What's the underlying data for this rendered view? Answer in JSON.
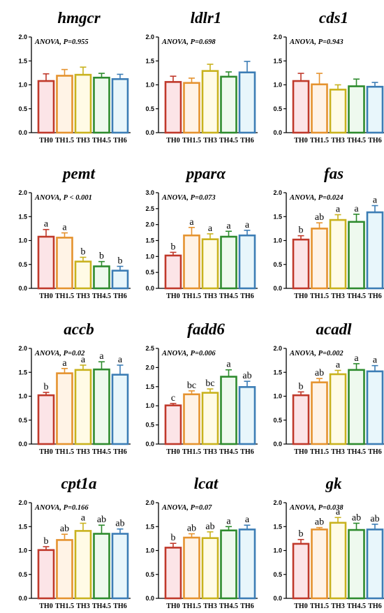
{
  "chart_data": [
    {
      "type": "bar",
      "title": "hmgcr",
      "annotation": "ANOVA, P=0.955",
      "categories": [
        "TH0",
        "TH1.5",
        "TH3",
        "TH4.5",
        "TH6"
      ],
      "values": [
        1.08,
        1.19,
        1.21,
        1.15,
        1.12
      ],
      "errors": [
        0.15,
        0.13,
        0.16,
        0.09,
        0.1
      ],
      "letters": [
        "",
        "",
        "",
        "",
        ""
      ],
      "ylim": [
        0,
        2.0
      ],
      "yticks": [
        "0.0",
        "0.5",
        "1.0",
        "1.5",
        "2.0"
      ]
    },
    {
      "type": "bar",
      "title": "ldlr1",
      "annotation": "ANOVA, P=0.698",
      "categories": [
        "TH0",
        "TH1.5",
        "TH3",
        "TH4.5",
        "TH6"
      ],
      "values": [
        1.06,
        1.04,
        1.29,
        1.17,
        1.26
      ],
      "errors": [
        0.12,
        0.1,
        0.14,
        0.1,
        0.23
      ],
      "letters": [
        "",
        "",
        "",
        "",
        ""
      ],
      "ylim": [
        0,
        2.0
      ],
      "yticks": [
        "0.0",
        "0.5",
        "1.0",
        "1.5",
        "2.0"
      ]
    },
    {
      "type": "bar",
      "title": "cds1",
      "annotation": "ANOVA, P=0.943",
      "categories": [
        "TH0",
        "TH1.5",
        "TH3",
        "TH4.5",
        "TH6"
      ],
      "values": [
        1.08,
        1.01,
        0.9,
        0.97,
        0.96
      ],
      "errors": [
        0.16,
        0.23,
        0.1,
        0.15,
        0.09
      ],
      "letters": [
        "",
        "",
        "",
        "",
        ""
      ],
      "ylim": [
        0,
        2.0
      ],
      "yticks": [
        "0.0",
        "0.5",
        "1.0",
        "1.5",
        "2.0"
      ]
    },
    {
      "type": "bar",
      "title": "pemt",
      "annotation": "ANOVA, P < 0.001",
      "categories": [
        "TH0",
        "TH1.5",
        "TH3",
        "TH4.5",
        "TH6"
      ],
      "values": [
        1.08,
        1.06,
        0.56,
        0.46,
        0.37
      ],
      "errors": [
        0.15,
        0.1,
        0.09,
        0.1,
        0.09
      ],
      "letters": [
        "a",
        "a",
        "b",
        "b",
        "b"
      ],
      "ylim": [
        0,
        2.0
      ],
      "yticks": [
        "0.0",
        "0.5",
        "1.0",
        "1.5",
        "2.0"
      ]
    },
    {
      "type": "bar",
      "title": "pparα",
      "annotation": "ANOVA, P=0.073",
      "categories": [
        "TH0",
        "TH1.5",
        "TH3",
        "TH4.5",
        "TH6"
      ],
      "values": [
        1.03,
        1.66,
        1.54,
        1.62,
        1.66
      ],
      "errors": [
        0.1,
        0.25,
        0.17,
        0.17,
        0.16
      ],
      "letters": [
        "b",
        "a",
        "a",
        "a",
        "a"
      ],
      "ylim": [
        0,
        3.0
      ],
      "yticks": [
        "0.0",
        "0.5",
        "1.0",
        "1.5",
        "2.0",
        "2.5",
        "3.0"
      ]
    },
    {
      "type": "bar",
      "title": "fas",
      "annotation": "ANOVA, P=0.024",
      "categories": [
        "TH0",
        "TH1.5",
        "TH3",
        "TH4.5",
        "TH6"
      ],
      "values": [
        1.02,
        1.25,
        1.43,
        1.39,
        1.59
      ],
      "errors": [
        0.08,
        0.12,
        0.11,
        0.16,
        0.14
      ],
      "letters": [
        "b",
        "ab",
        "a",
        "a",
        "a"
      ],
      "ylim": [
        0,
        2.0
      ],
      "yticks": [
        "0.0",
        "0.5",
        "1.0",
        "1.5",
        "2.0"
      ]
    },
    {
      "type": "bar",
      "title": "accb",
      "annotation": "ANOVA, P=0.02",
      "categories": [
        "TH0",
        "TH1.5",
        "TH3",
        "TH4.5",
        "TH6"
      ],
      "values": [
        1.02,
        1.48,
        1.55,
        1.56,
        1.45
      ],
      "errors": [
        0.06,
        0.1,
        0.1,
        0.16,
        0.2
      ],
      "letters": [
        "b",
        "a",
        "a",
        "a",
        "a"
      ],
      "ylim": [
        0,
        2.0
      ],
      "yticks": [
        "0.0",
        "0.5",
        "1.0",
        "1.5",
        "2.0"
      ]
    },
    {
      "type": "bar",
      "title": "fadd6",
      "annotation": "ANOVA, P=0.006",
      "categories": [
        "TH0",
        "TH1.5",
        "TH3",
        "TH4.5",
        "TH6"
      ],
      "values": [
        1.01,
        1.3,
        1.34,
        1.76,
        1.49
      ],
      "errors": [
        0.05,
        0.09,
        0.1,
        0.18,
        0.15
      ],
      "letters": [
        "c",
        "bc",
        "bc",
        "a",
        "ab"
      ],
      "ylim": [
        0,
        2.5
      ],
      "yticks": [
        "0.0",
        "0.5",
        "1.0",
        "1.5",
        "2.0",
        "2.5"
      ]
    },
    {
      "type": "bar",
      "title": "acadl",
      "annotation": "ANOVA, P=0.002",
      "categories": [
        "TH0",
        "TH1.5",
        "TH3",
        "TH4.5",
        "TH6"
      ],
      "values": [
        1.02,
        1.29,
        1.46,
        1.55,
        1.52
      ],
      "errors": [
        0.07,
        0.08,
        0.08,
        0.13,
        0.12
      ],
      "letters": [
        "b",
        "ab",
        "a",
        "a",
        "a"
      ],
      "ylim": [
        0,
        2.0
      ],
      "yticks": [
        "0.0",
        "0.5",
        "1.0",
        "1.5",
        "2.0"
      ]
    },
    {
      "type": "bar",
      "title": "cpt1a",
      "annotation": "ANOVA, P=0.166",
      "categories": [
        "TH0",
        "TH1.5",
        "TH3",
        "TH4.5",
        "TH6"
      ],
      "values": [
        1.01,
        1.22,
        1.41,
        1.35,
        1.35
      ],
      "errors": [
        0.07,
        0.12,
        0.16,
        0.18,
        0.1
      ],
      "letters": [
        "b",
        "ab",
        "a",
        "ab",
        "ab"
      ],
      "ylim": [
        0,
        2.0
      ],
      "yticks": [
        "0.0",
        "0.5",
        "1.0",
        "1.5",
        "2.0"
      ]
    },
    {
      "type": "bar",
      "title": "lcat",
      "annotation": "ANOVA, P=0.07",
      "categories": [
        "TH0",
        "TH1.5",
        "TH3",
        "TH4.5",
        "TH6"
      ],
      "values": [
        1.06,
        1.27,
        1.26,
        1.42,
        1.44
      ],
      "errors": [
        0.09,
        0.08,
        0.13,
        0.08,
        0.09
      ],
      "letters": [
        "b",
        "ab",
        "ab",
        "a",
        "a"
      ],
      "ylim": [
        0,
        2.0
      ],
      "yticks": [
        "0.0",
        "0.5",
        "1.0",
        "1.5",
        "2.0"
      ]
    },
    {
      "type": "bar",
      "title": "gk",
      "annotation": "ANOVA, P=0.038",
      "categories": [
        "TH0",
        "TH1.5",
        "TH3",
        "TH4.5",
        "TH6"
      ],
      "values": [
        1.14,
        1.44,
        1.58,
        1.43,
        1.44
      ],
      "errors": [
        0.09,
        0.04,
        0.11,
        0.14,
        0.11
      ],
      "letters": [
        "b",
        "ab",
        "a",
        "ab",
        "ab"
      ],
      "ylim": [
        0,
        2.0
      ],
      "yticks": [
        "0.0",
        "0.5",
        "1.0",
        "1.5",
        "2.0"
      ]
    }
  ],
  "colors": {
    "bar_edges": [
      "#C0392B",
      "#E5932F",
      "#C9B21E",
      "#2E8B2E",
      "#3C7DB5"
    ],
    "bar_fills": [
      "#FCE4E7",
      "#FFF3E6",
      "#FFFBE6",
      "#EEF9EE",
      "#E8F6FB"
    ],
    "axis": "#000000"
  }
}
